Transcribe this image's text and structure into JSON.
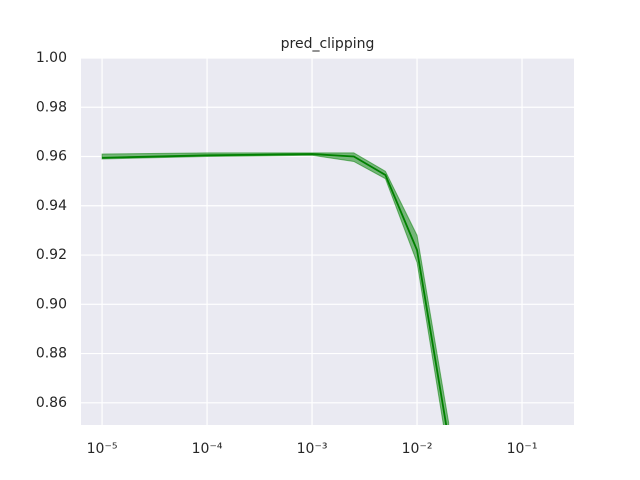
{
  "chart_data": {
    "type": "line",
    "title": "pred_clipping",
    "x": [
      1e-05,
      0.0001,
      0.001,
      0.0025,
      0.005,
      0.01,
      0.02
    ],
    "values": [
      0.9595,
      0.9605,
      0.961,
      0.96,
      0.9525,
      0.922,
      0.845
    ],
    "lower": [
      0.959,
      0.96,
      0.9605,
      0.958,
      0.951,
      0.917,
      0.838
    ],
    "upper": [
      0.961,
      0.9615,
      0.9615,
      0.9615,
      0.954,
      0.928,
      0.852
    ],
    "color": "#008000",
    "xscale": "log",
    "xlim": [
      6.3e-06,
      0.3126
    ],
    "ylim": [
      0.851,
      1.0
    ],
    "xticks": [
      {
        "value": 1e-05,
        "label": "10⁻⁵"
      },
      {
        "value": 0.0001,
        "label": "10⁻⁴"
      },
      {
        "value": 0.001,
        "label": "10⁻³"
      },
      {
        "value": 0.01,
        "label": "10⁻²"
      },
      {
        "value": 0.1,
        "label": "10⁻¹"
      }
    ],
    "yticks": [
      0.86,
      0.88,
      {
        "value": 0.9,
        "label": "0.90"
      },
      0.92,
      0.94,
      0.96,
      0.98,
      {
        "value": 1.0,
        "label": "1.00"
      }
    ],
    "grid": true
  }
}
